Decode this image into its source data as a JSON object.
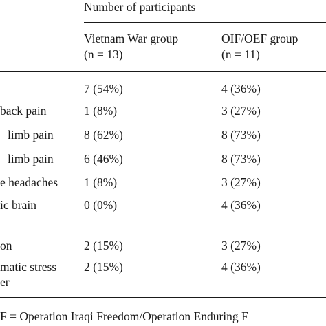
{
  "table": {
    "header_group": "Number of participants",
    "columns": [
      {
        "line1": "Vietnam War group",
        "line2": "(n = 13)"
      },
      {
        "line1": "OIF/OEF group",
        "line2": "(n = 11)"
      }
    ],
    "rows": [
      {
        "label": [
          ""
        ],
        "values": [
          "7 (54%)",
          "4 (36%)"
        ]
      },
      {
        "label": [
          "back pain"
        ],
        "values": [
          "1 (8%)",
          "3 (27%)"
        ]
      },
      {
        "label": [
          "limb pain"
        ],
        "values": [
          "8 (62%)",
          "8 (73%)"
        ]
      },
      {
        "label": [
          "limb pain"
        ],
        "values": [
          "6 (46%)",
          "8 (73%)"
        ]
      },
      {
        "label": [
          "e headaches"
        ],
        "values": [
          "1 (8%)",
          "3 (27%)"
        ]
      },
      {
        "label": [
          "ic brain",
          ""
        ],
        "values": [
          "0 (0%)",
          "4 (36%)"
        ]
      },
      {
        "label": [
          "on"
        ],
        "values": [
          "2 (15%)",
          "3 (27%)"
        ]
      },
      {
        "label": [
          "matic stress",
          "er"
        ],
        "values": [
          "2 (15%)",
          "4 (36%)"
        ]
      }
    ]
  },
  "footnote": "F = Operation Iraqi Freedom/Operation Enduring F"
}
